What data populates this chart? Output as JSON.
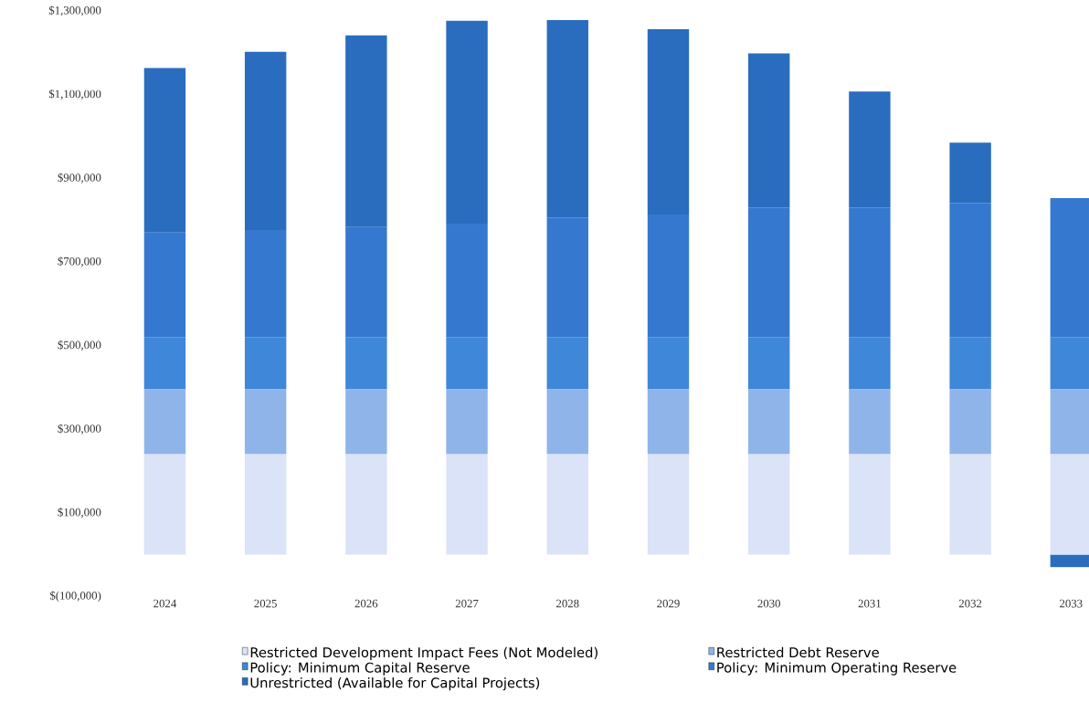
{
  "chart_data": {
    "type": "bar",
    "stacked": true,
    "categories": [
      "2024",
      "2025",
      "2026",
      "2027",
      "2028",
      "2029",
      "2030",
      "2031",
      "2032",
      "2033"
    ],
    "series": [
      {
        "name": "Restricted Development Impact Fees (Not Modeled)",
        "color": "#dae3f7",
        "values": [
          240000,
          240000,
          240000,
          240000,
          240000,
          240000,
          240000,
          240000,
          240000,
          240000
        ]
      },
      {
        "name": "Restricted Debt Reserve",
        "color": "#8fb4ea",
        "values": [
          155000,
          155000,
          155000,
          155000,
          155000,
          155000,
          155000,
          155000,
          155000,
          155000
        ]
      },
      {
        "name": "Policy: Minimum Capital Reserve",
        "color": "#3f87d9",
        "values": [
          125000,
          125000,
          125000,
          125000,
          125000,
          125000,
          125000,
          125000,
          125000,
          125000
        ]
      },
      {
        "name": "Policy: Minimum Operating Reserve",
        "color": "#3479cf",
        "values": [
          250000,
          256000,
          263000,
          271000,
          286000,
          293000,
          310000,
          310000,
          321000,
          332000
        ]
      },
      {
        "name": "Unrestricted (Available for Capital Projects)",
        "color": "#2a6dbf",
        "values": [
          393000,
          426000,
          458000,
          485000,
          472000,
          443000,
          368000,
          277000,
          144000,
          -30000
        ]
      }
    ],
    "ylim": [
      -100000,
      1300000
    ],
    "yticks": [
      {
        "value": -100000,
        "label": "$(100,000)"
      },
      {
        "value": 100000,
        "label": "$100,000"
      },
      {
        "value": 300000,
        "label": "$300,000"
      },
      {
        "value": 500000,
        "label": "$500,000"
      },
      {
        "value": 700000,
        "label": "$700,000"
      },
      {
        "value": 900000,
        "label": "$900,000"
      },
      {
        "value": 1100000,
        "label": "$1,100,000"
      },
      {
        "value": 1300000,
        "label": "$1,300,000"
      }
    ],
    "grid": false,
    "legend": "bottom"
  }
}
